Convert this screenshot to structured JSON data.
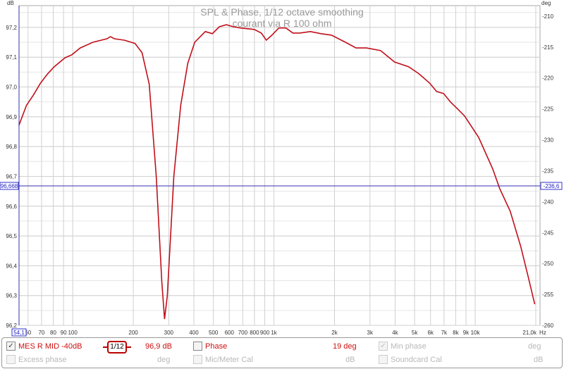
{
  "chart_data": {
    "type": "line",
    "title": "SPL & Phase, 1/12 octave smoothing",
    "subtitle": "courant via R 100 ohm",
    "ylabel": "dB",
    "y2label": "deg",
    "xunit": "Hz",
    "xscale": "log",
    "xlim": [
      54.1,
      21000
    ],
    "ylim": [
      96.2,
      97.273
    ],
    "y2lim": [
      -260,
      -208.3
    ],
    "grid": true,
    "y_ticks": [
      "97,2",
      "97,1",
      "97,0",
      "96,9",
      "96,8",
      "96,7",
      "96,6",
      "96,5",
      "96,4",
      "96,3",
      "96,2"
    ],
    "y_tick_values": [
      97.2,
      97.1,
      97.0,
      96.9,
      96.8,
      96.7,
      96.6,
      96.5,
      96.4,
      96.3,
      96.2
    ],
    "y2_ticks": [
      "-210",
      "-215",
      "-220",
      "-225",
      "-230",
      "-235",
      "-240",
      "-245",
      "-250",
      "-255",
      "-260"
    ],
    "y2_tick_values": [
      -210,
      -215,
      -220,
      -225,
      -230,
      -235,
      -240,
      -245,
      -250,
      -255,
      -260
    ],
    "x_ticks": [
      "60",
      "70",
      "80",
      "90",
      "100",
      "200",
      "300",
      "400",
      "500",
      "600",
      "700",
      "800",
      "900",
      "1k",
      "2k",
      "3k",
      "4k",
      "5k",
      "6k",
      "7k",
      "8k",
      "9k",
      "10k"
    ],
    "x_tick_values": [
      60,
      70,
      80,
      90,
      100,
      200,
      300,
      400,
      500,
      600,
      700,
      800,
      900,
      1000,
      2000,
      3000,
      4000,
      5000,
      6000,
      7000,
      8000,
      9000,
      10000
    ],
    "x_end_label": "21,0k",
    "cursor": {
      "x_label": "54,1",
      "y_value": 96.668,
      "y_label": "96,668",
      "y2_label": "-236,6"
    },
    "series": [
      {
        "name": "MES R MID -40dB",
        "color": "#c0101a",
        "x": [
          54,
          58.9,
          63.8,
          69.2,
          75,
          81,
          91.6,
          99,
          109,
          126,
          148,
          154,
          161,
          181,
          204,
          221,
          240,
          260,
          277,
          286,
          295,
          318,
          344,
          373,
          404,
          456,
          494,
          535,
          580,
          628,
          680,
          798,
          865,
          916,
          977,
          1057,
          1146,
          1242,
          1345,
          1518,
          1712,
          1931,
          2266,
          2556,
          2884,
          3388,
          3973,
          4666,
          5262,
          5937,
          6430,
          6966,
          7551,
          8185,
          8872,
          10400,
          12220,
          13240,
          14930,
          16830,
          18240,
          19770
        ],
        "y": [
          96.871,
          96.938,
          96.973,
          97.013,
          97.044,
          97.068,
          97.098,
          97.108,
          97.131,
          97.15,
          97.162,
          97.169,
          97.162,
          97.157,
          97.146,
          97.115,
          97.009,
          96.701,
          96.347,
          96.221,
          96.299,
          96.701,
          96.938,
          97.079,
          97.15,
          97.186,
          97.179,
          97.202,
          97.209,
          97.202,
          97.198,
          97.193,
          97.181,
          97.157,
          97.174,
          97.198,
          97.198,
          97.181,
          97.181,
          97.186,
          97.179,
          97.174,
          97.15,
          97.131,
          97.131,
          97.122,
          97.084,
          97.068,
          97.044,
          97.013,
          96.985,
          96.978,
          96.949,
          96.926,
          96.902,
          96.831,
          96.725,
          96.659,
          96.583,
          96.465,
          96.37,
          96.271
        ]
      }
    ]
  },
  "legend": {
    "trace_label": "MES R MID -40dB",
    "smoothing_label": "1/12",
    "trace_value": "96,9 dB",
    "phase_label": "Phase",
    "phase_value": "19 deg",
    "min_phase_label": "Min phase",
    "min_phase_unit": "deg",
    "excess_phase_label": "Excess phase",
    "excess_phase_unit": "deg",
    "mic_cal_label": "Mic/Meter Cal",
    "mic_cal_unit": "dB",
    "soundcard_cal_label": "Soundcard Cal",
    "soundcard_cal_unit": "dB",
    "check_mark": "✓"
  }
}
